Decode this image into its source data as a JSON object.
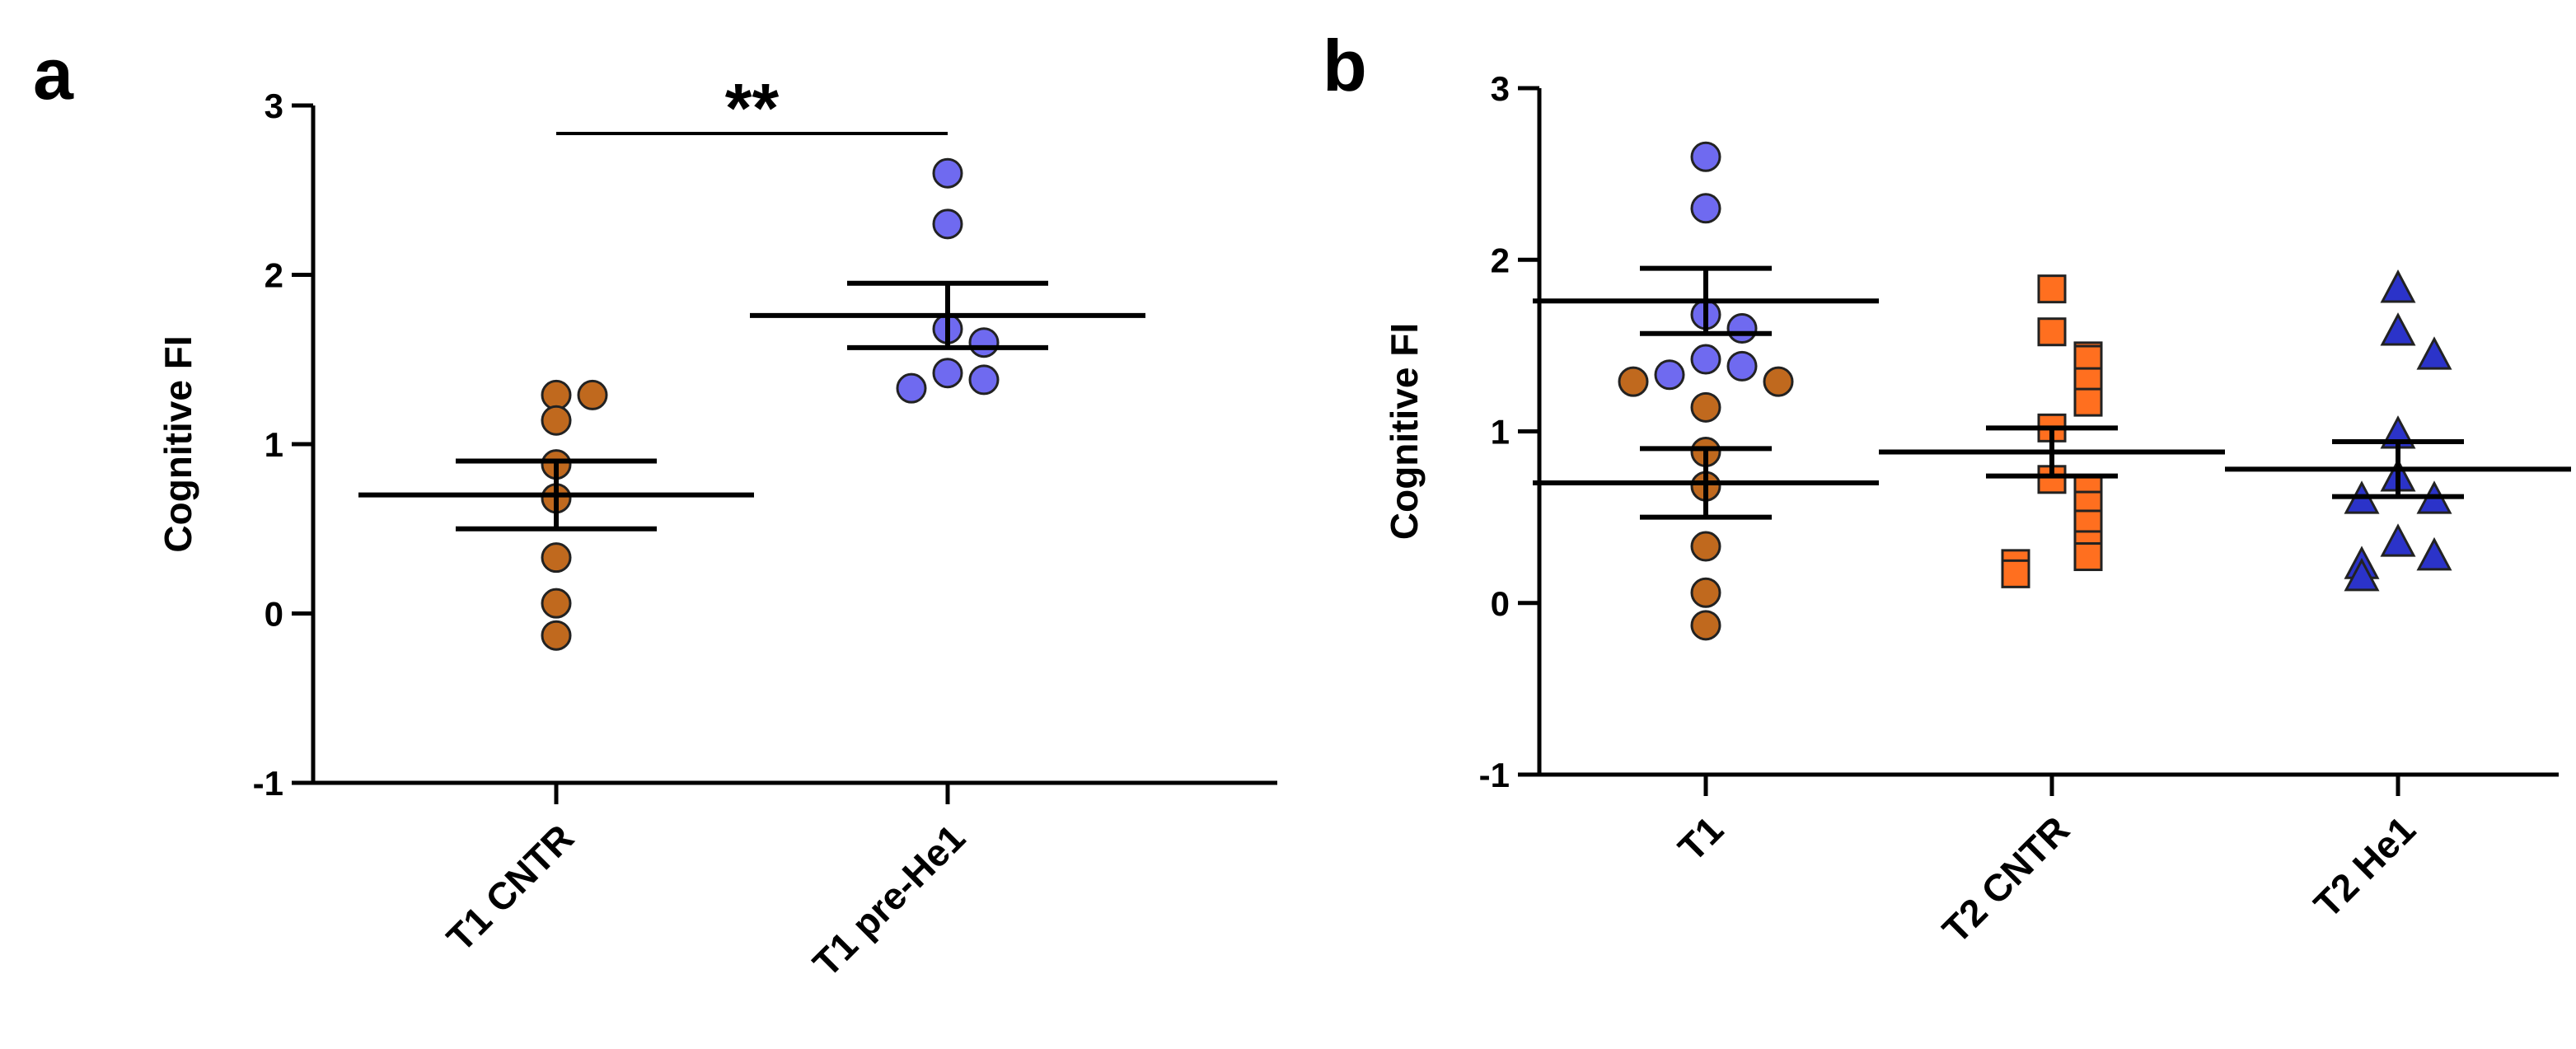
{
  "chart_data": [
    {
      "panel": "a",
      "type": "scatter",
      "ylabel": "Cognitive FI",
      "xlabel": "",
      "ylim": [
        -1,
        3
      ],
      "yticks": [
        "-1",
        "0",
        "1",
        "2",
        "3"
      ],
      "categories": [
        "T1 CNTR",
        "T1 pre-He1"
      ],
      "significance": "**",
      "colors": [
        "#C0691E",
        "#6F6AF0"
      ],
      "markers": [
        "circle",
        "circle"
      ],
      "groups": [
        {
          "category": "T1 CNTR",
          "values": [
            1.29,
            1.29,
            1.14,
            0.88,
            0.68,
            0.33,
            0.06,
            -0.13
          ],
          "mean": 0.7,
          "sem_low": 0.5,
          "sem_high": 0.9
        },
        {
          "category": "T1 pre-He1",
          "values": [
            2.6,
            2.3,
            1.68,
            1.6,
            1.42,
            1.38,
            1.33
          ],
          "mean": 1.76,
          "sem_low": 1.57,
          "sem_high": 1.95
        }
      ]
    },
    {
      "panel": "b",
      "type": "scatter",
      "ylabel": "Cognitive FI",
      "xlabel": "",
      "ylim": [
        -1,
        3
      ],
      "yticks": [
        "-1",
        "0",
        "1",
        "2",
        "3"
      ],
      "categories": [
        "T1",
        "T2 CNTR",
        "T2 He1"
      ],
      "colors": [
        "#6F6AF0",
        "#FF6F1F",
        "#2B33C9",
        "#C0691E"
      ],
      "markers": [
        "circle",
        "square",
        "triangle"
      ],
      "groups": [
        {
          "category": "T1",
          "values": [
            2.6,
            2.3,
            1.68,
            1.6,
            1.42,
            1.38,
            1.33,
            1.29,
            1.29,
            1.14,
            0.88,
            0.68,
            0.33,
            0.06,
            -0.13
          ],
          "point_colors": [
            "#6F6AF0",
            "#6F6AF0",
            "#6F6AF0",
            "#6F6AF0",
            "#6F6AF0",
            "#6F6AF0",
            "#6F6AF0",
            "#C0691E",
            "#C0691E",
            "#C0691E",
            "#C0691E",
            "#C0691E",
            "#C0691E",
            "#C0691E",
            "#C0691E"
          ],
          "mean": [
            1.76,
            0.7
          ],
          "sem_low": [
            1.57,
            0.5
          ],
          "sem_high": [
            1.95,
            0.9
          ]
        },
        {
          "category": "T2 CNTR",
          "values": [
            1.83,
            1.58,
            1.44,
            1.42,
            1.29,
            1.17,
            1.02,
            0.72,
            0.66,
            0.57,
            0.46,
            0.34,
            0.27,
            0.23,
            0.17
          ],
          "mean": 0.88,
          "sem_low": 0.74,
          "sem_high": 1.02
        },
        {
          "category": "T2 He1",
          "values": [
            1.83,
            1.58,
            1.44,
            0.98,
            0.73,
            0.6,
            0.6,
            0.35,
            0.27,
            0.22,
            0.15
          ],
          "mean": 0.78,
          "sem_low": 0.62,
          "sem_high": 0.94
        }
      ]
    }
  ]
}
